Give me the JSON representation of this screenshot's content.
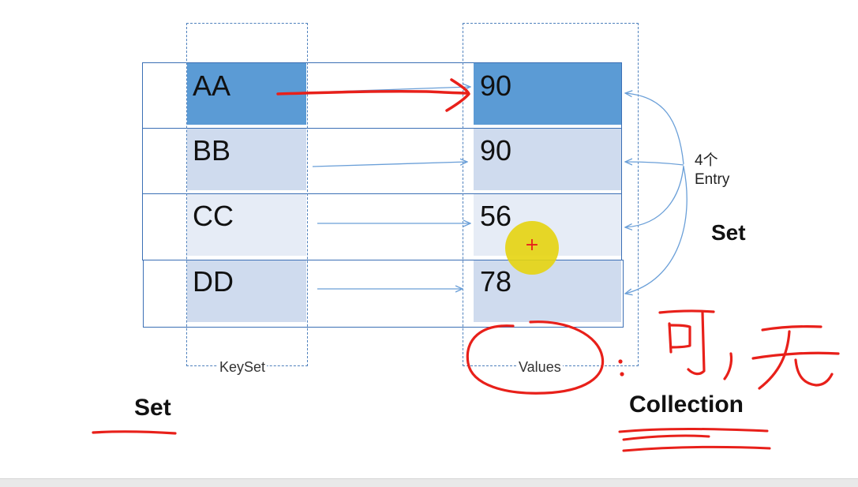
{
  "diagram": {
    "rows": [
      {
        "key": "AA",
        "value": "90"
      },
      {
        "key": "BB",
        "value": "90"
      },
      {
        "key": "CC",
        "value": "56"
      },
      {
        "key": "DD",
        "value": "78"
      }
    ],
    "keyset_label": "KeySet",
    "values_label": "Values",
    "entry_label_line1": "4个",
    "entry_label_line2": "Entry",
    "set_right_label": "Set",
    "set_left_label": "Set",
    "collection_label": "Collection",
    "handwriting": "可, 无",
    "colors": {
      "highlight": "#5b9bd5",
      "cell_light": "#d5dff0",
      "row_border": "#3b6fb5",
      "arrow": "#6a9fd8",
      "annotation": "#e8201a",
      "cursor": "#e6d40f"
    }
  }
}
